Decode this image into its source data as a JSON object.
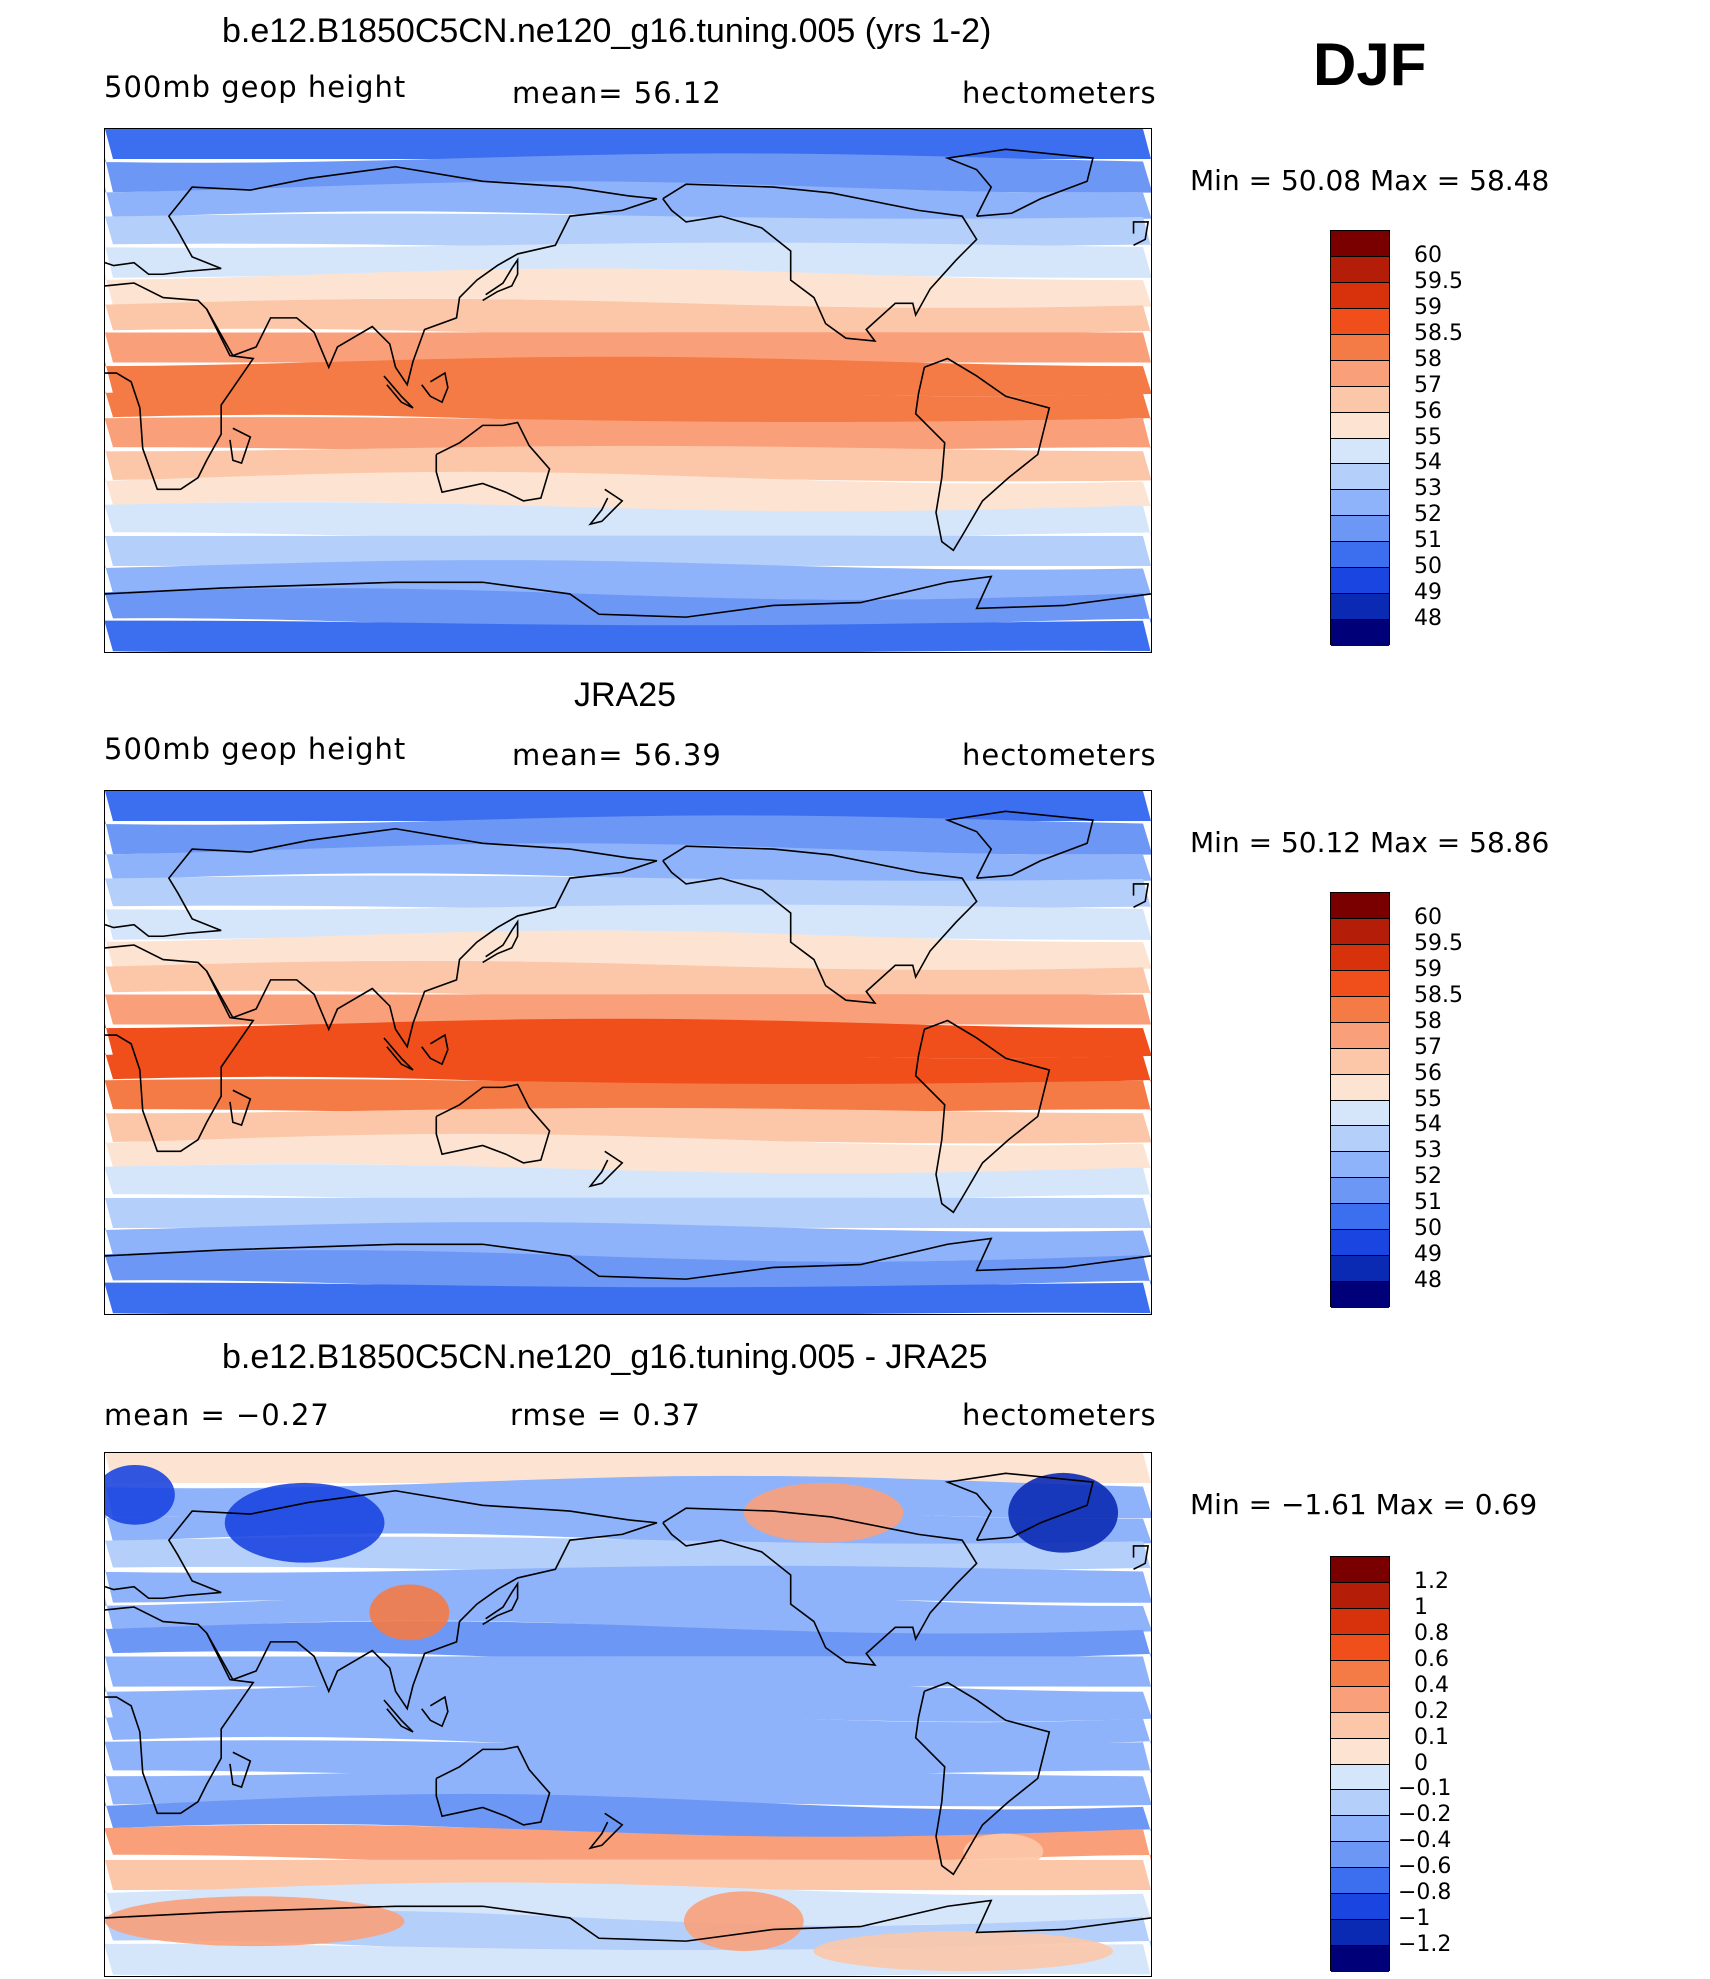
{
  "header": {
    "season": "DJF"
  },
  "panels": [
    {
      "title": "b.e12.B1850C5CN.ne120_g16.tuning.005 (yrs 1-2)",
      "left_label": "500mb  geop  height",
      "stat": "mean=   56.12",
      "units": "hectometers",
      "minmax": "Min  =    50.08  Max  =    58.48",
      "colorbar": {
        "labels": [
          "60",
          "59.5",
          "59",
          "58.5",
          "58",
          "57",
          "56",
          "55",
          "54",
          "53",
          "52",
          "51",
          "50",
          "49",
          "48"
        ],
        "colors": [
          "#7a0000",
          "#b41e08",
          "#d8320c",
          "#f04e1a",
          "#f47a46",
          "#f9a07a",
          "#fcc6a8",
          "#fde4d2",
          "#d6e6fa",
          "#b4cffa",
          "#8fb3fa",
          "#6d97f5",
          "#3c6ef0",
          "#1b45e0",
          "#0a2ab4",
          "#000078"
        ]
      },
      "map_colors": [
        "#3c6ef0",
        "#6d97f5",
        "#8fb3fa",
        "#b4cffa",
        "#d6e6fa",
        "#fde4d2",
        "#fcc6a8",
        "#f9a07a",
        "#f47a46",
        "#f47a46",
        "#f9a07a",
        "#fcc6a8",
        "#fde4d2",
        "#d6e6fa",
        "#b4cffa",
        "#8fb3fa",
        "#6d97f5",
        "#3c6ef0"
      ]
    },
    {
      "title": "JRA25",
      "left_label": "500mb  geop  height",
      "stat": "mean=   56.39",
      "units": "hectometers",
      "minmax": "Min  =    50.12  Max  =    58.86",
      "colorbar": {
        "labels": [
          "60",
          "59.5",
          "59",
          "58.5",
          "58",
          "57",
          "56",
          "55",
          "54",
          "53",
          "52",
          "51",
          "50",
          "49",
          "48"
        ],
        "colors": [
          "#7a0000",
          "#b41e08",
          "#d8320c",
          "#f04e1a",
          "#f47a46",
          "#f9a07a",
          "#fcc6a8",
          "#fde4d2",
          "#d6e6fa",
          "#b4cffa",
          "#8fb3fa",
          "#6d97f5",
          "#3c6ef0",
          "#1b45e0",
          "#0a2ab4",
          "#000078"
        ]
      },
      "map_colors": [
        "#3c6ef0",
        "#6d97f5",
        "#8fb3fa",
        "#b4cffa",
        "#d6e6fa",
        "#fde4d2",
        "#fcc6a8",
        "#f9a07a",
        "#f04e1a",
        "#f04e1a",
        "#f47a46",
        "#fcc6a8",
        "#fde4d2",
        "#d6e6fa",
        "#b4cffa",
        "#8fb3fa",
        "#6d97f5",
        "#3c6ef0"
      ]
    },
    {
      "title": "b.e12.B1850C5CN.ne120_g16.tuning.005 - JRA25",
      "left_label": "mean  =    −0.27",
      "stat": "rmse  =     0.37",
      "units": "hectometers",
      "minmax": "Min  =   −1.61  Max  =      0.69",
      "colorbar": {
        "labels": [
          "1.2",
          "1",
          "0.8",
          "0.6",
          "0.4",
          "0.2",
          "0.1",
          "0",
          "−0.1",
          "−0.2",
          "−0.4",
          "−0.6",
          "−0.8",
          "−1",
          "−1.2"
        ],
        "colors": [
          "#7a0000",
          "#b41e08",
          "#d8320c",
          "#f04e1a",
          "#f47a46",
          "#f9a07a",
          "#fcc6a8",
          "#fde4d2",
          "#d6e6fa",
          "#b4cffa",
          "#8fb3fa",
          "#6d97f5",
          "#3c6ef0",
          "#1b45e0",
          "#0a2ab4",
          "#000078"
        ]
      },
      "map_colors": [
        "#fde4d2",
        "#8fb3fa",
        "#8fb3fa",
        "#b4cffa",
        "#8fb3fa",
        "#8fb3fa",
        "#6d97f5",
        "#8fb3fa",
        "#8fb3fa",
        "#8fb3fa",
        "#8fb3fa",
        "#8fb3fa",
        "#6d97f5",
        "#f9a07a",
        "#fcc6a8",
        "#d6e6fa",
        "#b4cffa",
        "#d6e6fa"
      ]
    }
  ]
}
